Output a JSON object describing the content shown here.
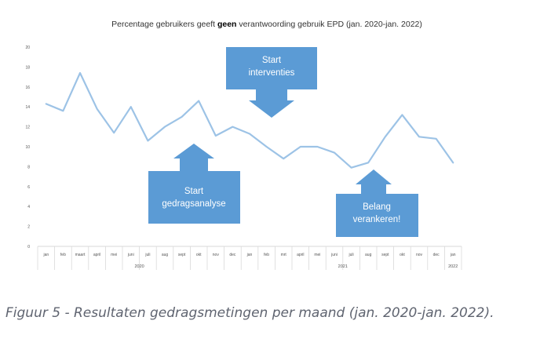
{
  "chart_data": {
    "type": "line",
    "title_prefix": "Percentage gebruikers geeft ",
    "title_bold": "geen",
    "title_suffix": " verantwoording gebruik EPD (jan. 2020-jan. 2022)",
    "categories": [
      "jan",
      "feb",
      "maart",
      "april",
      "mei",
      "juni",
      "juli",
      "aug",
      "sept",
      "okt",
      "nov",
      "dec",
      "jan",
      "feb",
      "mrt",
      "april",
      "mei",
      "juni",
      "juli",
      "aug",
      "sept",
      "okt",
      "nov",
      "dec",
      "jan"
    ],
    "year_labels": [
      "2020",
      "2021",
      "2022"
    ],
    "values": [
      14.3,
      13.6,
      17.4,
      13.8,
      11.4,
      14.0,
      10.6,
      12.0,
      13.0,
      14.6,
      11.1,
      12.0,
      11.3,
      10.0,
      8.8,
      10.0,
      10.0,
      9.4,
      7.9,
      8.4,
      11.0,
      13.2,
      11.0,
      10.8,
      8.4
    ],
    "ylim": [
      0,
      20
    ],
    "yticks": [
      0,
      2,
      4,
      6,
      8,
      10,
      12,
      14,
      16,
      18,
      20
    ],
    "grid": false,
    "line_color": "#9dc3e6"
  },
  "annotations": [
    {
      "lines": [
        "Start",
        "interventies"
      ],
      "color": "#5b9bd5"
    },
    {
      "lines": [
        "Start",
        "gedragsanalyse"
      ],
      "color": "#5b9bd5"
    },
    {
      "lines": [
        "Belang",
        "verankeren!"
      ],
      "color": "#5b9bd5"
    }
  ],
  "caption": "Figuur 5 - Resultaten gedragsmetingen per maand (jan. 2020-jan. 2022)."
}
